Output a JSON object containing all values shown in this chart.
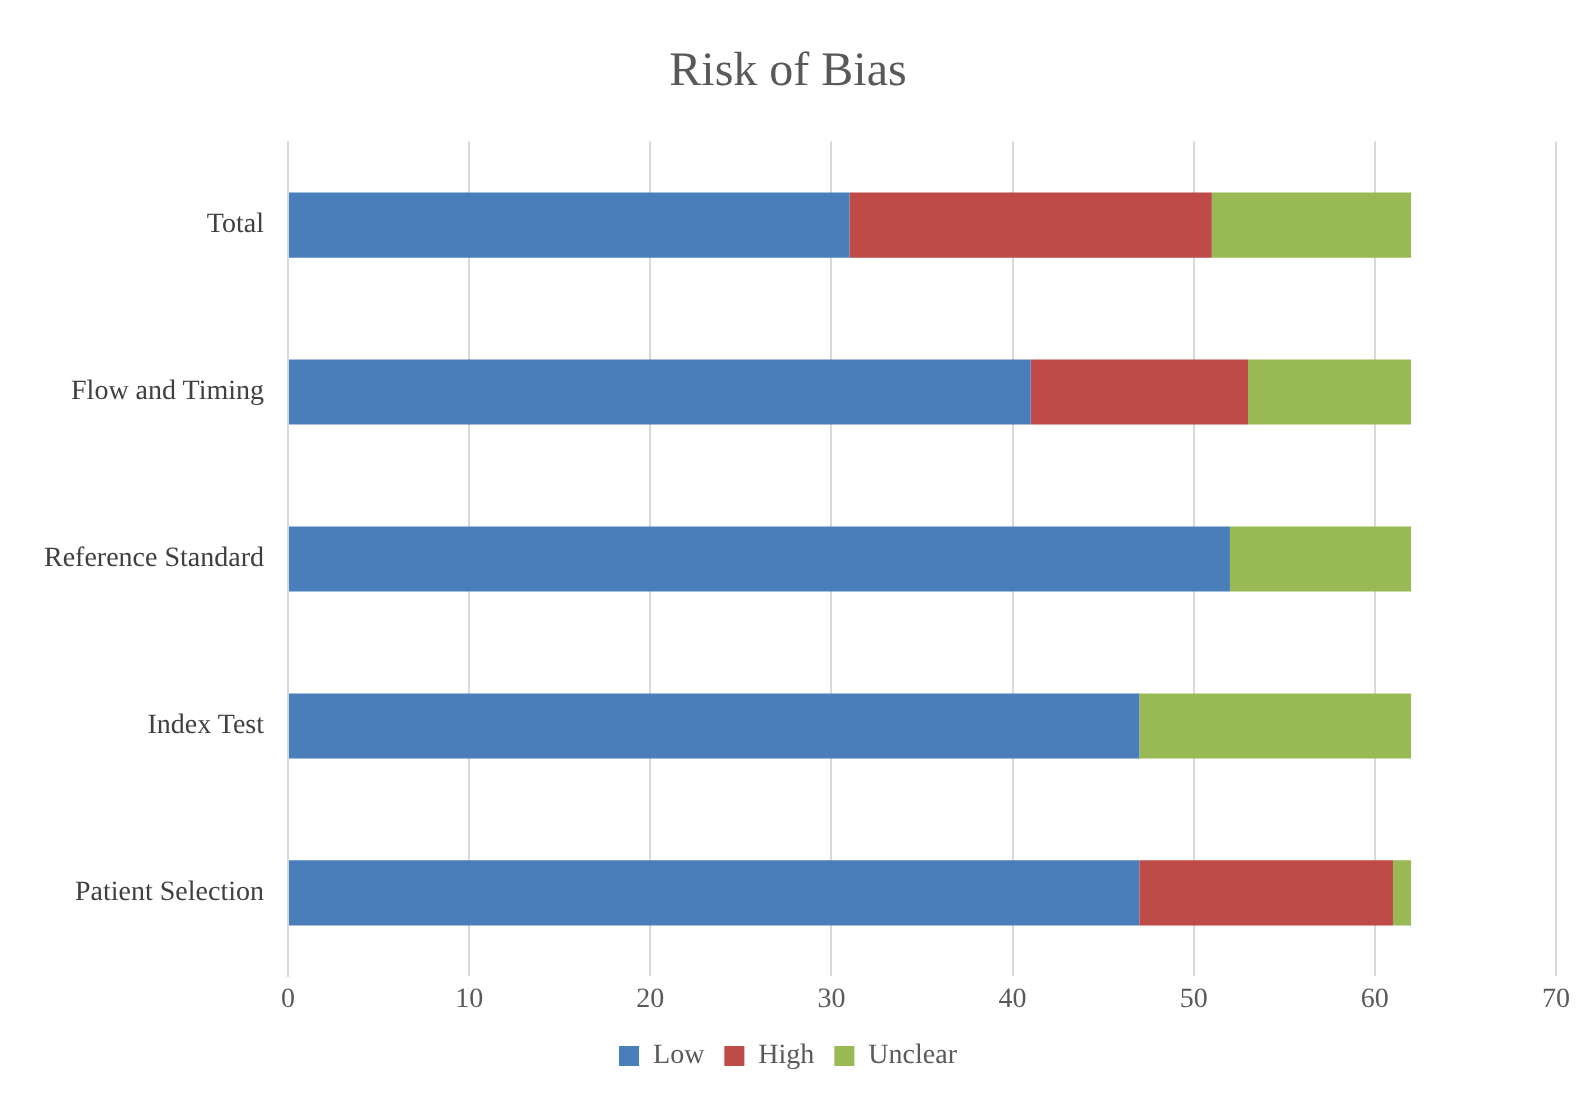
{
  "chart_data": {
    "type": "bar",
    "title": "Risk of Bias",
    "orientation": "horizontal",
    "stacked": true,
    "categories": [
      "Total",
      "Flow and Timing",
      "Reference Standard",
      "Index Test",
      "Patient Selection"
    ],
    "series": [
      {
        "name": "Low",
        "color": "#4a7ebb",
        "values": [
          31,
          41,
          52,
          47,
          47
        ]
      },
      {
        "name": "High",
        "color": "#be4b48",
        "values": [
          20,
          12,
          0,
          0,
          14
        ]
      },
      {
        "name": "Unclear",
        "color": "#98b954",
        "values": [
          11,
          9,
          10,
          15,
          1
        ]
      }
    ],
    "xlim": [
      0,
      70
    ],
    "xticks": [
      0,
      10,
      20,
      30,
      40,
      50,
      60,
      70
    ],
    "grid": "x",
    "legend": "bottom"
  }
}
